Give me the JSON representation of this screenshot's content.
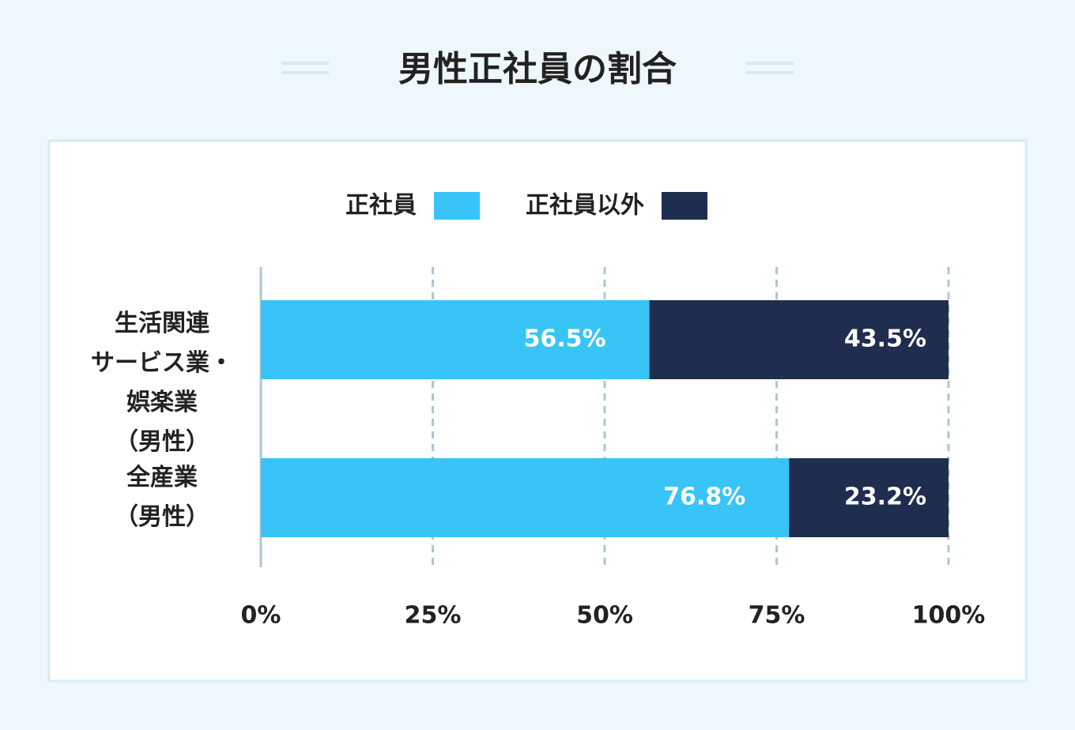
{
  "chart_data": {
    "type": "stacked-barh",
    "title": "男性正社員の割合",
    "categories": [
      "生活関連\nサービス業・\n娯楽業\n（男性）",
      "全産業\n（男性）"
    ],
    "series": [
      {
        "name": "正社員",
        "color": "#38c4f7",
        "values": [
          56.5,
          76.8
        ],
        "value_labels": [
          "56.5%",
          "76.8%"
        ]
      },
      {
        "name": "正社員以外",
        "color": "#1f2d4f",
        "values": [
          43.5,
          23.2
        ],
        "value_labels": [
          "43.5%",
          "23.2%"
        ]
      }
    ],
    "xlim": [
      0,
      100
    ],
    "xticks": [
      {
        "value": 0,
        "label": "0%"
      },
      {
        "value": 25,
        "label": "25%"
      },
      {
        "value": 50,
        "label": "50%"
      },
      {
        "value": 75,
        "label": "75%"
      },
      {
        "value": 100,
        "label": "100%"
      }
    ],
    "grid": true
  }
}
